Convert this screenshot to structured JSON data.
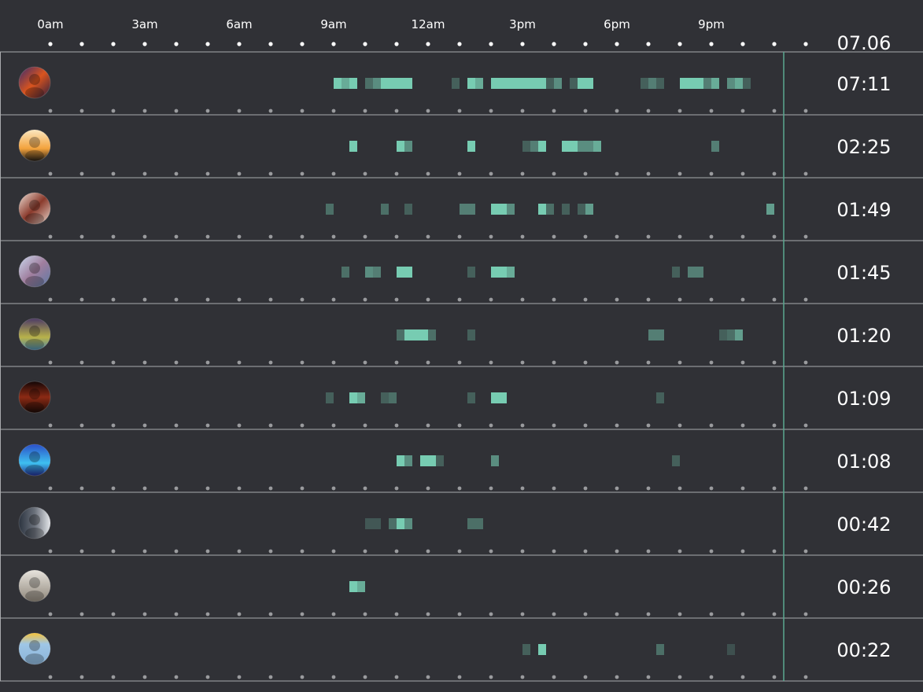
{
  "colors": {
    "background": "#303136",
    "activity": "#77ccb2",
    "separator": "#a9aaad",
    "now_line": "#5aa88f",
    "dot_header": "#ffffff",
    "dot_row": "#9a9b9e"
  },
  "chart_data": {
    "type": "heatmap",
    "title": "",
    "date": "07.06",
    "x_unit": "hour",
    "xlim": [
      0,
      24
    ],
    "bin_hours": 0.25,
    "ticks": [
      {
        "hour": 0,
        "label": "0am"
      },
      {
        "hour": 3,
        "label": "3am"
      },
      {
        "hour": 6,
        "label": "6am"
      },
      {
        "hour": 9,
        "label": "9am"
      },
      {
        "hour": 12,
        "label": "12am"
      },
      {
        "hour": 15,
        "label": "3pm"
      },
      {
        "hour": 18,
        "label": "6pm"
      },
      {
        "hour": 21,
        "label": "9pm"
      }
    ],
    "now_hour": 23.3,
    "rows": [
      {
        "total": "07:11",
        "avatar": "avatar-fiery-character",
        "activity": [
          [
            9,
            1
          ],
          [
            9.25,
            0.8
          ],
          [
            9.5,
            1
          ],
          [
            10,
            0.4
          ],
          [
            10.25,
            0.6
          ],
          [
            10.5,
            1
          ],
          [
            10.75,
            1
          ],
          [
            11,
            1
          ],
          [
            11.25,
            1
          ],
          [
            12.75,
            0.3
          ],
          [
            13.25,
            1
          ],
          [
            13.5,
            0.8
          ],
          [
            14,
            1
          ],
          [
            14.25,
            1
          ],
          [
            14.5,
            1
          ],
          [
            14.75,
            1
          ],
          [
            15,
            1
          ],
          [
            15.25,
            1
          ],
          [
            15.5,
            1
          ],
          [
            15.75,
            0.3
          ],
          [
            16,
            0.6
          ],
          [
            16.5,
            0.3
          ],
          [
            16.75,
            1
          ],
          [
            17,
            1
          ],
          [
            18.75,
            0.3
          ],
          [
            19,
            0.5
          ],
          [
            19.25,
            0.3
          ],
          [
            20,
            1
          ],
          [
            20.25,
            1
          ],
          [
            20.5,
            1
          ],
          [
            20.75,
            0.5
          ],
          [
            21,
            0.8
          ],
          [
            21.5,
            0.6
          ],
          [
            21.75,
            0.8
          ],
          [
            22,
            0.3
          ]
        ]
      },
      {
        "total": "02:25",
        "avatar": "avatar-silhouette-sunset",
        "activity": [
          [
            9.5,
            1
          ],
          [
            11,
            1
          ],
          [
            11.25,
            0.6
          ],
          [
            13.25,
            1
          ],
          [
            15,
            0.3
          ],
          [
            15.25,
            0.5
          ],
          [
            15.5,
            1
          ],
          [
            16.25,
            1
          ],
          [
            16.5,
            1
          ],
          [
            16.75,
            0.6
          ],
          [
            17,
            0.6
          ],
          [
            17.25,
            0.8
          ],
          [
            21,
            0.5
          ]
        ]
      },
      {
        "total": "01:49",
        "avatar": "avatar-red-haired-woman",
        "activity": [
          [
            8.75,
            0.4
          ],
          [
            10.5,
            0.4
          ],
          [
            11.25,
            0.3
          ],
          [
            13,
            0.5
          ],
          [
            13.25,
            0.5
          ],
          [
            14,
            1
          ],
          [
            14.25,
            1
          ],
          [
            14.5,
            0.6
          ],
          [
            15.5,
            1
          ],
          [
            15.75,
            0.4
          ],
          [
            16.25,
            0.3
          ],
          [
            16.75,
            0.3
          ],
          [
            17,
            0.7
          ],
          [
            22.75,
            0.7
          ]
        ]
      },
      {
        "total": "01:45",
        "avatar": "avatar-window-girl",
        "activity": [
          [
            9.25,
            0.4
          ],
          [
            10,
            0.6
          ],
          [
            10.25,
            0.5
          ],
          [
            11,
            1
          ],
          [
            11.25,
            1
          ],
          [
            13.25,
            0.3
          ],
          [
            14,
            1
          ],
          [
            14.25,
            1
          ],
          [
            14.5,
            0.8
          ],
          [
            19.75,
            0.3
          ],
          [
            20.25,
            0.5
          ],
          [
            20.5,
            0.5
          ]
        ]
      },
      {
        "total": "01:20",
        "avatar": "avatar-sunglasses-cartoon",
        "activity": [
          [
            11,
            0.4
          ],
          [
            11.25,
            1
          ],
          [
            11.5,
            1
          ],
          [
            11.75,
            1
          ],
          [
            12,
            0.4
          ],
          [
            13.25,
            0.3
          ],
          [
            19,
            0.5
          ],
          [
            19.25,
            0.5
          ],
          [
            21.25,
            0.3
          ],
          [
            21.5,
            0.4
          ],
          [
            21.75,
            0.7
          ]
        ]
      },
      {
        "total": "01:09",
        "avatar": "avatar-dark-figure",
        "activity": [
          [
            8.75,
            0.3
          ],
          [
            9.5,
            1
          ],
          [
            9.75,
            0.8
          ],
          [
            10.5,
            0.3
          ],
          [
            10.75,
            0.4
          ],
          [
            13.25,
            0.3
          ],
          [
            14,
            1
          ],
          [
            14.25,
            1
          ],
          [
            19.25,
            0.3
          ]
        ]
      },
      {
        "total": "01:08",
        "avatar": "avatar-anime-blue-hair",
        "activity": [
          [
            11,
            1
          ],
          [
            11.25,
            0.6
          ],
          [
            11.75,
            1
          ],
          [
            12,
            1
          ],
          [
            12.25,
            0.3
          ],
          [
            14,
            0.6
          ],
          [
            19.75,
            0.3
          ]
        ]
      },
      {
        "total": "00:42",
        "avatar": "avatar-man-portrait",
        "activity": [
          [
            10,
            0.25
          ],
          [
            10.25,
            0.25
          ],
          [
            10.75,
            0.4
          ],
          [
            11,
            1
          ],
          [
            11.25,
            0.6
          ],
          [
            13.25,
            0.4
          ],
          [
            13.5,
            0.4
          ]
        ]
      },
      {
        "total": "00:26",
        "avatar": "avatar-panda",
        "activity": [
          [
            9.5,
            1
          ],
          [
            9.75,
            0.8
          ]
        ]
      },
      {
        "total": "00:22",
        "avatar": "avatar-elephant-cartoon",
        "activity": [
          [
            15,
            0.3
          ],
          [
            15.5,
            1
          ],
          [
            19.25,
            0.4
          ],
          [
            21.5,
            0.2
          ]
        ]
      }
    ]
  }
}
